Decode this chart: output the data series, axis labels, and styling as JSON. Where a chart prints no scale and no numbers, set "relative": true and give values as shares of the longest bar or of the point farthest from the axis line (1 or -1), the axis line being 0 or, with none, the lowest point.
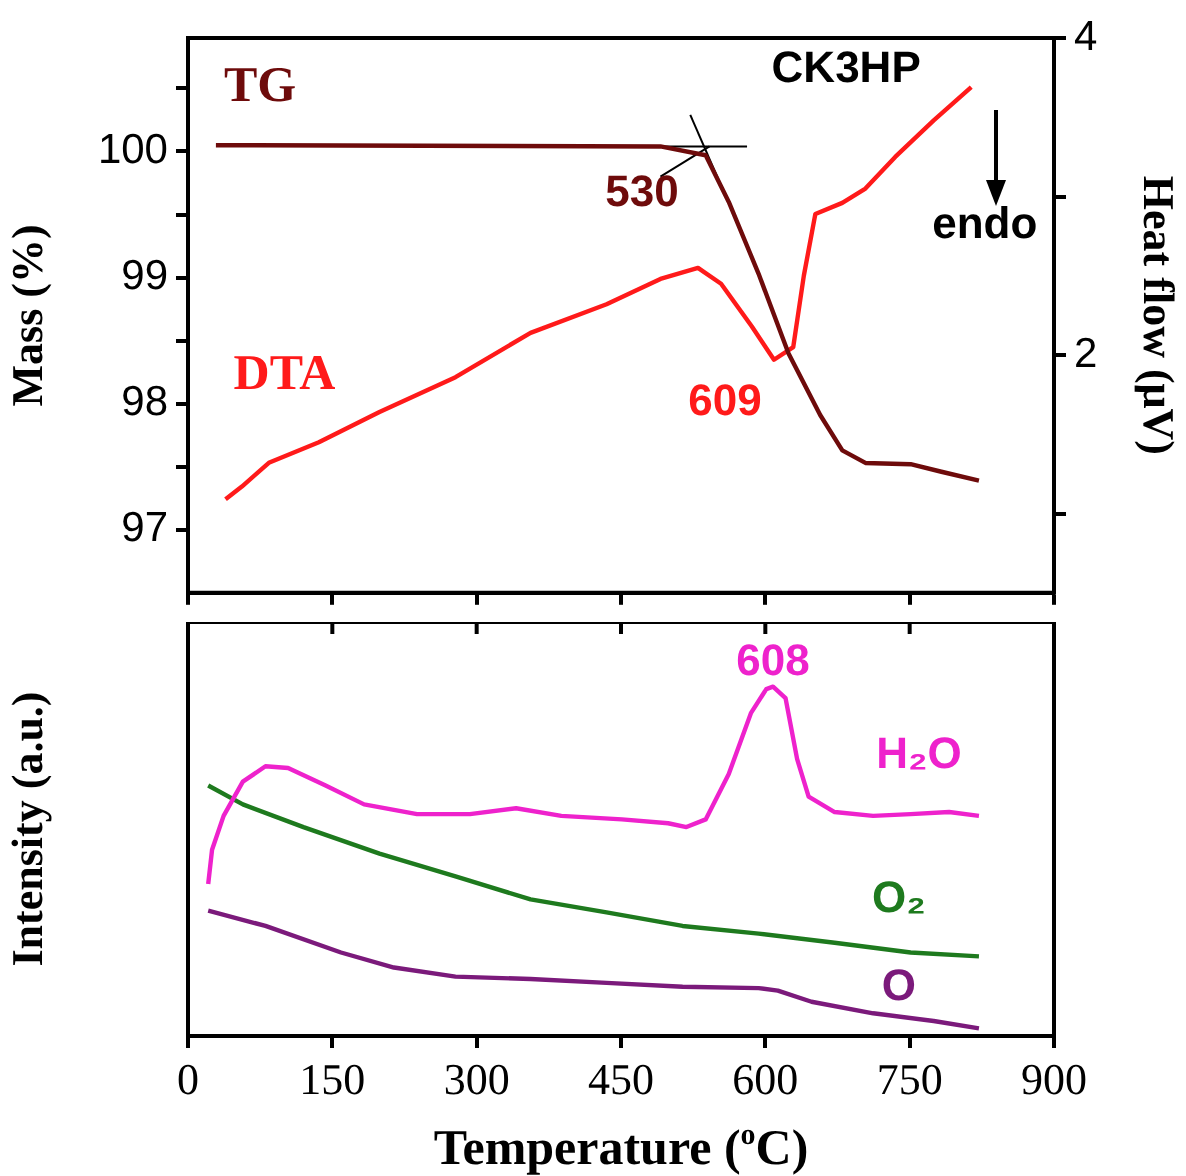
{
  "chart_data": [
    {
      "type": "line",
      "ylabel": "Mass (%)",
      "y2label": "Heat flow (μV)",
      "xlim": [
        0,
        900
      ],
      "xticks": [
        0,
        150,
        300,
        450,
        600,
        750,
        900
      ],
      "ylim": [
        96.5,
        100.9
      ],
      "yticks": [
        97,
        {
          "value": 97.5,
          "label": null
        },
        98,
        {
          "value": 98.5,
          "label": null
        },
        99,
        {
          "value": 99.5,
          "label": null
        },
        100,
        {
          "value": 100.5,
          "label": null
        }
      ],
      "y2lim": [
        0.5,
        4
      ],
      "y2ticks": [
        {
          "value": 1,
          "label": null
        },
        2,
        {
          "value": 3,
          "label": null
        },
        4
      ],
      "tick_labels": "y",
      "legend": false,
      "annotations": [
        "CK3HP",
        {
          "text": "530",
          "x": 530,
          "y": 100.04
        },
        "609",
        "endo"
      ],
      "series": [
        {
          "name": "TG",
          "color": "#6e0b0b",
          "x": [
            29,
            491,
            538,
            562,
            593,
            624,
            657,
            680,
            704,
            751,
            783,
            822
          ],
          "values": [
            100.05,
            100.04,
            99.97,
            99.6,
            99.03,
            98.4,
            97.91,
            97.63,
            97.53,
            97.52,
            97.46,
            97.39
          ]
        },
        {
          "name": "DTA",
          "color": "#ff1a1a",
          "axis": "y2",
          "x": [
            39,
            56,
            84,
            136,
            199,
            278,
            356,
            435,
            491,
            530,
            554,
            586,
            609,
            629,
            640,
            652,
            680,
            704,
            735,
            775,
            814
          ],
          "values": [
            1.09,
            1.17,
            1.32,
            1.45,
            1.64,
            1.86,
            2.14,
            2.32,
            2.48,
            2.55,
            2.45,
            2.18,
            1.97,
            2.05,
            2.5,
            2.89,
            2.96,
            3.05,
            3.25,
            3.48,
            3.69
          ]
        },
        {
          "color": "#000000",
          "x": [
            491,
            581
          ],
          "values": [
            100.04,
            100.04
          ]
        },
        {
          "color": "#000000",
          "x": [
            522,
            558
          ],
          "values": [
            100.29,
            99.66
          ]
        },
        {
          "color": "#000000",
          "x": [
            491,
            542
          ],
          "values": [
            99.8,
            100.04
          ]
        }
      ]
    },
    {
      "type": "line",
      "xlabel": "Temperature ($^{o}$C)",
      "ylabel": "Intensity (a.u.)",
      "relative": true,
      "xlim": [
        0,
        900
      ],
      "xticks": [
        0,
        150,
        300,
        450,
        600,
        750,
        900
      ],
      "tick_labels": "x",
      "legend": false,
      "annotations": [
        {
          "text": "608",
          "x": 608,
          "y": 1
        }
      ],
      "series": [
        {
          "name": "H₂O",
          "color": "#ee22cc",
          "x": [
            21,
            25,
            37,
            57,
            80.5,
            104,
            143,
            183,
            238,
            293,
            341,
            388,
            451,
            499,
            518,
            538,
            562,
            585,
            601,
            608,
            621,
            633,
            645,
            672,
            712,
            751,
            791,
            822
          ],
          "values": [
            0.435,
            0.533,
            0.63,
            0.728,
            0.772,
            0.767,
            0.717,
            0.663,
            0.635,
            0.635,
            0.652,
            0.63,
            0.62,
            0.609,
            0.598,
            0.62,
            0.75,
            0.924,
            0.993,
            1,
            0.967,
            0.793,
            0.685,
            0.641,
            0.63,
            0.635,
            0.641,
            0.63
          ]
        },
        {
          "name": "O₂",
          "color": "#1e7a1e",
          "x": [
            21,
            57,
            120,
            199,
            278,
            356,
            435,
            514,
            593,
            672,
            751,
            822
          ],
          "values": [
            0.717,
            0.663,
            0.598,
            0.522,
            0.457,
            0.391,
            0.354,
            0.315,
            0.293,
            0.267,
            0.239,
            0.228
          ]
        },
        {
          "name": "O",
          "color": "#7b1a7b",
          "x": [
            21,
            80.5,
            159,
            214,
            278,
            356,
            435,
            514,
            593,
            613,
            648,
            712,
            775,
            822
          ],
          "values": [
            0.359,
            0.315,
            0.239,
            0.196,
            0.17,
            0.163,
            0.152,
            0.141,
            0.137,
            0.13,
            0.098,
            0.065,
            0.043,
            0.022
          ]
        }
      ]
    }
  ]
}
